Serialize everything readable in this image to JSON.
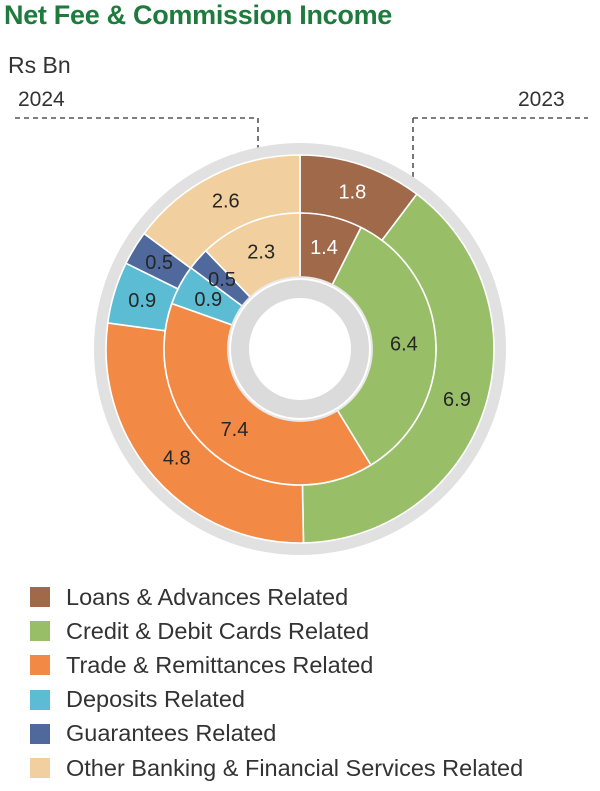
{
  "title": "Net Fee & Commission Income",
  "unit": "Rs Bn",
  "year_left": "2024",
  "year_right": "2023",
  "chart_data": {
    "type": "pie",
    "subtype": "nested-donut",
    "categories": [
      "Loans & Advances Related",
      "Credit & Debit Cards Related",
      "Trade & Remittances Related",
      "Deposits Related",
      "Guarantees Related",
      "Other Banking & Financial Services Related"
    ],
    "colors": [
      "#a0694a",
      "#98bf68",
      "#f28a45",
      "#5bbcd3",
      "#4f699d",
      "#f2cf9e"
    ],
    "series": [
      {
        "name": "2024",
        "ring": "outer",
        "values": [
          1.8,
          6.9,
          4.8,
          0.9,
          0.5,
          2.6
        ],
        "labels": [
          "1.8",
          "6.9",
          "4.8",
          "0.9",
          "0.5",
          "2.6"
        ]
      },
      {
        "name": "2023",
        "ring": "inner",
        "values": [
          1.4,
          6.4,
          7.4,
          0.9,
          0.5,
          2.3
        ],
        "labels": [
          "1.4",
          "6.4",
          "7.4",
          "0.9",
          "0.5",
          "2.3"
        ]
      }
    ]
  },
  "legend": [
    {
      "label": "Loans & Advances Related",
      "color": "#a0694a"
    },
    {
      "label": "Credit & Debit Cards Related",
      "color": "#98bf68"
    },
    {
      "label": "Trade & Remittances Related",
      "color": "#f28a45"
    },
    {
      "label": "Deposits Related",
      "color": "#5bbcd3"
    },
    {
      "label": "Guarantees Related",
      "color": "#4f699d"
    },
    {
      "label": "Other Banking & Financial Services Related",
      "color": "#f2cf9e"
    }
  ]
}
